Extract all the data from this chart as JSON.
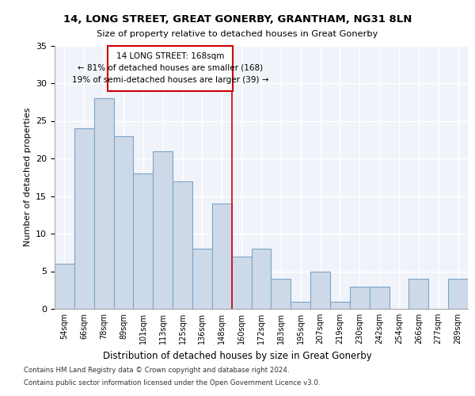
{
  "title": "14, LONG STREET, GREAT GONERBY, GRANTHAM, NG31 8LN",
  "subtitle": "Size of property relative to detached houses in Great Gonerby",
  "xlabel": "Distribution of detached houses by size in Great Gonerby",
  "ylabel": "Number of detached properties",
  "categories": [
    "54sqm",
    "66sqm",
    "78sqm",
    "89sqm",
    "101sqm",
    "113sqm",
    "125sqm",
    "136sqm",
    "148sqm",
    "160sqm",
    "172sqm",
    "183sqm",
    "195sqm",
    "207sqm",
    "219sqm",
    "230sqm",
    "242sqm",
    "254sqm",
    "266sqm",
    "277sqm",
    "289sqm"
  ],
  "values": [
    6,
    24,
    28,
    23,
    18,
    21,
    17,
    8,
    14,
    7,
    8,
    4,
    1,
    5,
    1,
    3,
    3,
    0,
    4,
    0,
    4
  ],
  "bar_facecolor": "#cdd9e8",
  "bar_edgecolor": "#7ba3c8",
  "annotation_box_color": "#cc0000",
  "annotation_text_line1": "14 LONG STREET: 168sqm",
  "annotation_text_line2": "← 81% of detached houses are smaller (168)",
  "annotation_text_line3": "19% of semi-detached houses are larger (39) →",
  "property_line_index": 9.0,
  "ylim": [
    0,
    35
  ],
  "yticks": [
    0,
    5,
    10,
    15,
    20,
    25,
    30,
    35
  ],
  "plot_bg_color": "#f0f4fa",
  "footnote1": "Contains HM Land Registry data © Crown copyright and database right 2024.",
  "footnote2": "Contains public sector information licensed under the Open Government Licence v3.0."
}
